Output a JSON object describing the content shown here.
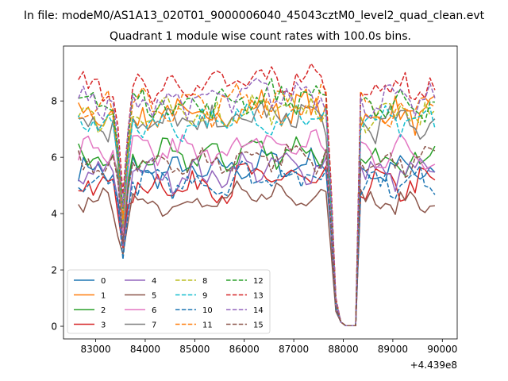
{
  "figure": {
    "suptitle": "In file: modeM0/AS1A13_020T01_9000006040_45043cztM0_level2_quad_clean.evt"
  },
  "chart_data": {
    "type": "line",
    "title": "Quadrant 1 module wise count rates with 100.0s bins.",
    "xlabel": "",
    "ylabel": "",
    "offset_text": "+4.439e8",
    "x_offset": 443900000,
    "xlim": [
      82350,
      90300
    ],
    "ylim": [
      -0.45,
      9.95
    ],
    "xticks": [
      83000,
      84000,
      85000,
      86000,
      87000,
      88000,
      89000,
      90000
    ],
    "xtick_labels": [
      "83000",
      "84000",
      "85000",
      "86000",
      "87000",
      "88000",
      "89000",
      "90000"
    ],
    "yticks": [
      0,
      2,
      4,
      6,
      8
    ],
    "ytick_labels": [
      "0",
      "2",
      "4",
      "6",
      "8"
    ],
    "grid": false,
    "legend_position": "lower-left",
    "legend_ncol": 4,
    "x_start": 82650,
    "x_step": 100,
    "dip1_x": 83550,
    "gap_start_x": 87850,
    "gap_end_x": 88250,
    "x_end": 89850,
    "series": [
      {
        "name": "0",
        "color": "#1f77b4",
        "dash": "solid",
        "level": 5.5,
        "amp": 0.35
      },
      {
        "name": "1",
        "color": "#ff7f0e",
        "dash": "solid",
        "level": 7.5,
        "amp": 0.45
      },
      {
        "name": "2",
        "color": "#2ca02c",
        "dash": "solid",
        "level": 6.0,
        "amp": 0.4
      },
      {
        "name": "3",
        "color": "#d62728",
        "dash": "solid",
        "level": 5.0,
        "amp": 0.45
      },
      {
        "name": "4",
        "color": "#9467bd",
        "dash": "solid",
        "level": 5.4,
        "amp": 0.4
      },
      {
        "name": "5",
        "color": "#8c564b",
        "dash": "solid",
        "level": 4.4,
        "amp": 0.3
      },
      {
        "name": "6",
        "color": "#e377c2",
        "dash": "solid",
        "level": 6.2,
        "amp": 0.45
      },
      {
        "name": "7",
        "color": "#7f7f7f",
        "dash": "solid",
        "level": 7.2,
        "amp": 0.45
      },
      {
        "name": "8",
        "color": "#bcbd22",
        "dash": "dashed",
        "level": 7.5,
        "amp": 0.4
      },
      {
        "name": "9",
        "color": "#17becf",
        "dash": "dashed",
        "level": 7.2,
        "amp": 0.4
      },
      {
        "name": "10",
        "color": "#1f77b4",
        "dash": "dashed",
        "level": 5.1,
        "amp": 0.35
      },
      {
        "name": "11",
        "color": "#ff7f0e",
        "dash": "dashed",
        "level": 7.8,
        "amp": 0.45
      },
      {
        "name": "12",
        "color": "#2ca02c",
        "dash": "dashed",
        "level": 7.9,
        "amp": 0.4
      },
      {
        "name": "13",
        "color": "#d62728",
        "dash": "dashed",
        "level": 8.5,
        "amp": 0.4
      },
      {
        "name": "14",
        "color": "#9467bd",
        "dash": "dashed",
        "level": 8.0,
        "amp": 0.4
      },
      {
        "name": "15",
        "color": "#8c564b",
        "dash": "dashed",
        "level": 5.8,
        "amp": 0.35
      }
    ]
  }
}
